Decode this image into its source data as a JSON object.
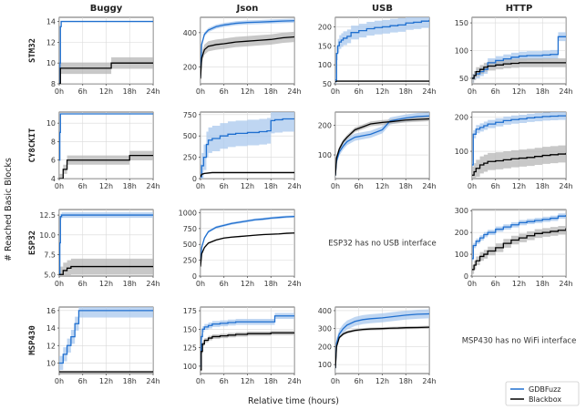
{
  "figure": {
    "xlabel": "Relative time (hours)",
    "ylabel": "# Reached Basic Blocks",
    "columns": [
      "Buggy",
      "Json",
      "USB",
      "HTTP"
    ],
    "rows": [
      "STM32",
      "CY8CKIT",
      "ESP32",
      "MSP430"
    ],
    "x_ticks": [
      "0h",
      "6h",
      "12h",
      "18h",
      "24h"
    ],
    "legend": [
      {
        "label": "GDBFuzz",
        "color": "#1f6fcf"
      },
      {
        "label": "Blackbox",
        "color": "#000000"
      }
    ],
    "notes": [
      {
        "row": 2,
        "col": 2,
        "text": "ESP32 has no USB interface"
      },
      {
        "row": 3,
        "col": 3,
        "text": "MSP430 has no WiFi interface"
      }
    ]
  },
  "chart_data": [
    {
      "type": "line",
      "row": 0,
      "col": 0,
      "ylim": [
        8,
        14.4
      ],
      "yticks": [
        8,
        10,
        12,
        14
      ],
      "yfmt": 0,
      "series": [
        {
          "name": "GDBFuzz",
          "color": "#1f6fcf",
          "band": 0,
          "step": true,
          "x": [
            0,
            0.2,
            0.3,
            0.5,
            24
          ],
          "y": [
            8,
            10,
            13.5,
            14,
            14
          ]
        },
        {
          "name": "Blackbox",
          "color": "#000000",
          "band": 0.55,
          "step": true,
          "x": [
            0,
            0.3,
            13.3,
            24
          ],
          "y": [
            8,
            9.5,
            10,
            10
          ]
        }
      ]
    },
    {
      "type": "line",
      "row": 0,
      "col": 1,
      "ylim": [
        100,
        490
      ],
      "yticks": [
        200,
        400
      ],
      "yfmt": 0,
      "series": [
        {
          "name": "GDBFuzz",
          "color": "#1f6fcf",
          "band": 12,
          "step": false,
          "x": [
            0,
            0.3,
            1,
            2,
            4,
            6,
            9,
            12,
            15,
            18,
            21,
            24
          ],
          "y": [
            140,
            330,
            390,
            415,
            435,
            445,
            455,
            460,
            462,
            465,
            468,
            470
          ]
        },
        {
          "name": "Blackbox",
          "color": "#000000",
          "band": 30,
          "step": false,
          "x": [
            0,
            0.3,
            1,
            2,
            4,
            6,
            9,
            12,
            15,
            18,
            21,
            24
          ],
          "y": [
            130,
            250,
            300,
            320,
            330,
            335,
            345,
            350,
            355,
            360,
            370,
            375
          ]
        }
      ]
    },
    {
      "type": "line",
      "row": 0,
      "col": 2,
      "ylim": [
        50,
        225
      ],
      "yticks": [
        50,
        100,
        150,
        200
      ],
      "yfmt": 0,
      "series": [
        {
          "name": "GDBFuzz",
          "color": "#1f6fcf",
          "band": 18,
          "step": true,
          "x": [
            0,
            0.3,
            0.6,
            1,
            1.5,
            2,
            3,
            4,
            6,
            8,
            10,
            12,
            14,
            16,
            18,
            20,
            22,
            24
          ],
          "y": [
            60,
            130,
            150,
            160,
            165,
            170,
            175,
            185,
            190,
            195,
            198,
            200,
            203,
            205,
            210,
            212,
            215,
            218
          ]
        },
        {
          "name": "Blackbox",
          "color": "#000000",
          "band": 0,
          "step": false,
          "x": [
            0,
            0.3,
            24
          ],
          "y": [
            55,
            57,
            57
          ]
        }
      ]
    },
    {
      "type": "line",
      "row": 0,
      "col": 3,
      "ylim": [
        40,
        160
      ],
      "yticks": [
        50,
        100,
        150
      ],
      "yfmt": 0,
      "series": [
        {
          "name": "GDBFuzz",
          "color": "#1f6fcf",
          "band": 8,
          "step": true,
          "x": [
            0,
            0.5,
            1,
            2,
            3,
            4,
            6,
            8,
            10,
            12,
            14,
            16,
            18,
            20,
            21.5,
            22,
            24
          ],
          "y": [
            50,
            55,
            58,
            62,
            66,
            78,
            82,
            85,
            88,
            90,
            91,
            91,
            92,
            93,
            93,
            125,
            125
          ]
        },
        {
          "name": "Blackbox",
          "color": "#000000",
          "band": 8,
          "step": true,
          "x": [
            0,
            0.5,
            1,
            2,
            3,
            4,
            6,
            8,
            10,
            12,
            14,
            16,
            18,
            20,
            22,
            24
          ],
          "y": [
            50,
            55,
            62,
            66,
            70,
            72,
            74,
            76,
            77,
            78,
            78,
            78,
            78,
            78,
            78,
            78
          ]
        }
      ]
    },
    {
      "type": "line",
      "row": 1,
      "col": 0,
      "ylim": [
        4,
        11.2
      ],
      "yticks": [
        4,
        6,
        8,
        10
      ],
      "yfmt": 0,
      "series": [
        {
          "name": "GDBFuzz",
          "color": "#1f6fcf",
          "band": 0,
          "step": true,
          "x": [
            0,
            0.15,
            0.3,
            24
          ],
          "y": [
            6,
            9,
            11,
            11
          ]
        },
        {
          "name": "Blackbox",
          "color": "#000000",
          "band": 0.5,
          "step": true,
          "x": [
            0,
            1,
            2,
            3,
            18,
            24
          ],
          "y": [
            4,
            5,
            6,
            6,
            6.5,
            6.5
          ]
        }
      ]
    },
    {
      "type": "line",
      "row": 1,
      "col": 1,
      "ylim": [
        0,
        780
      ],
      "yticks": [
        0,
        250,
        500,
        750
      ],
      "yfmt": 0,
      "series": [
        {
          "name": "GDBFuzz",
          "color": "#1f6fcf",
          "band": 150,
          "step": true,
          "x": [
            0,
            0.3,
            0.8,
            1.5,
            2,
            3,
            5,
            7,
            9,
            12,
            15,
            17,
            18,
            19,
            21,
            24
          ],
          "y": [
            20,
            150,
            250,
            400,
            450,
            470,
            500,
            520,
            530,
            540,
            550,
            560,
            680,
            690,
            700,
            700
          ]
        },
        {
          "name": "Blackbox",
          "color": "#000000",
          "band": 8,
          "step": false,
          "x": [
            0,
            0.3,
            1,
            3,
            24
          ],
          "y": [
            20,
            50,
            60,
            70,
            70
          ]
        }
      ]
    },
    {
      "type": "line",
      "row": 1,
      "col": 2,
      "ylim": [
        20,
        245
      ],
      "yticks": [
        100,
        200
      ],
      "yfmt": 0,
      "series": [
        {
          "name": "GDBFuzz",
          "color": "#1f6fcf",
          "band": 12,
          "step": false,
          "x": [
            0,
            0.3,
            1,
            2,
            3,
            5,
            7,
            9,
            12,
            14,
            16,
            18,
            21,
            24
          ],
          "y": [
            30,
            80,
            110,
            130,
            145,
            160,
            165,
            170,
            185,
            215,
            220,
            225,
            230,
            232
          ]
        },
        {
          "name": "Blackbox",
          "color": "#000000",
          "band": 8,
          "step": false,
          "x": [
            0,
            0.3,
            1,
            2,
            3,
            5,
            7,
            9,
            12,
            14,
            16,
            18,
            21,
            24
          ],
          "y": [
            30,
            90,
            120,
            145,
            160,
            185,
            195,
            205,
            210,
            212,
            215,
            218,
            220,
            222
          ]
        }
      ]
    },
    {
      "type": "line",
      "row": 1,
      "col": 3,
      "ylim": [
        20,
        215
      ],
      "yticks": [
        100,
        200
      ],
      "yfmt": 0,
      "series": [
        {
          "name": "GDBFuzz",
          "color": "#1f6fcf",
          "band": 12,
          "step": true,
          "x": [
            0,
            0.3,
            1,
            2,
            3,
            4,
            6,
            8,
            10,
            12,
            14,
            16,
            18,
            20,
            22,
            24
          ],
          "y": [
            60,
            150,
            165,
            170,
            175,
            180,
            185,
            190,
            193,
            195,
            198,
            200,
            202,
            203,
            204,
            205
          ]
        },
        {
          "name": "Blackbox",
          "color": "#000000",
          "band": 25,
          "step": true,
          "x": [
            0,
            0.5,
            1,
            2,
            3,
            4,
            6,
            8,
            10,
            12,
            14,
            16,
            18,
            20,
            22,
            24
          ],
          "y": [
            30,
            40,
            50,
            60,
            65,
            70,
            72,
            75,
            78,
            80,
            82,
            85,
            88,
            90,
            92,
            95
          ]
        }
      ]
    },
    {
      "type": "line",
      "row": 2,
      "col": 0,
      "ylim": [
        4.8,
        13.2
      ],
      "yticks": [
        5,
        7.5,
        10,
        12.5
      ],
      "yfmt": 1,
      "series": [
        {
          "name": "GDBFuzz",
          "color": "#1f6fcf",
          "band": 0.35,
          "step": true,
          "x": [
            0,
            0.15,
            0.3,
            0.6,
            24
          ],
          "y": [
            5,
            9,
            12.3,
            12.5,
            12.5
          ]
        },
        {
          "name": "Blackbox",
          "color": "#000000",
          "band": 1,
          "step": true,
          "x": [
            0,
            1,
            2,
            3,
            24
          ],
          "y": [
            5,
            5.5,
            5.8,
            6,
            6
          ]
        }
      ]
    },
    {
      "type": "line",
      "row": 2,
      "col": 1,
      "ylim": [
        0,
        1050
      ],
      "yticks": [
        0,
        250,
        500,
        750,
        1000
      ],
      "yfmt": 0,
      "series": [
        {
          "name": "GDBFuzz",
          "color": "#1f6fcf",
          "band": 20,
          "step": false,
          "x": [
            0,
            0.3,
            1,
            2,
            4,
            6,
            8,
            10,
            12,
            14,
            16,
            18,
            20,
            22,
            24
          ],
          "y": [
            200,
            450,
            600,
            700,
            770,
            800,
            830,
            850,
            870,
            890,
            900,
            915,
            925,
            935,
            940
          ]
        },
        {
          "name": "Blackbox",
          "color": "#000000",
          "band": 10,
          "step": false,
          "x": [
            0,
            0.3,
            1,
            2,
            4,
            6,
            8,
            10,
            12,
            14,
            16,
            18,
            20,
            22,
            24
          ],
          "y": [
            150,
            350,
            450,
            520,
            570,
            600,
            615,
            625,
            635,
            645,
            655,
            660,
            665,
            675,
            680
          ]
        }
      ]
    },
    {
      "type": "line",
      "row": 2,
      "col": 3,
      "ylim": [
        0,
        305
      ],
      "yticks": [
        0,
        100,
        200,
        300
      ],
      "yfmt": 0,
      "series": [
        {
          "name": "GDBFuzz",
          "color": "#1f6fcf",
          "band": 12,
          "step": true,
          "x": [
            0,
            0.3,
            1,
            2,
            3,
            4,
            6,
            8,
            10,
            12,
            14,
            16,
            18,
            20,
            22,
            24
          ],
          "y": [
            80,
            140,
            160,
            175,
            190,
            200,
            215,
            225,
            235,
            245,
            250,
            255,
            260,
            265,
            275,
            280
          ]
        },
        {
          "name": "Blackbox",
          "color": "#000000",
          "band": 20,
          "step": true,
          "x": [
            0,
            0.5,
            1,
            2,
            3,
            4,
            6,
            8,
            10,
            12,
            14,
            16,
            18,
            20,
            22,
            24
          ],
          "y": [
            30,
            50,
            70,
            90,
            100,
            115,
            130,
            150,
            165,
            175,
            185,
            195,
            200,
            205,
            210,
            220
          ]
        }
      ]
    },
    {
      "type": "line",
      "row": 3,
      "col": 0,
      "ylim": [
        8.8,
        16.4
      ],
      "yticks": [
        10,
        12,
        14,
        16
      ],
      "yfmt": 0,
      "series": [
        {
          "name": "GDBFuzz",
          "color": "#1f6fcf",
          "band": 0.8,
          "step": true,
          "x": [
            0,
            1,
            2,
            3,
            4,
            5,
            24
          ],
          "y": [
            10,
            11,
            12,
            13,
            14.5,
            16,
            16
          ]
        },
        {
          "name": "Blackbox",
          "color": "#000000",
          "band": 0,
          "step": false,
          "x": [
            0,
            24
          ],
          "y": [
            9,
            9
          ]
        }
      ]
    },
    {
      "type": "line",
      "row": 3,
      "col": 1,
      "ylim": [
        90,
        180
      ],
      "yticks": [
        100,
        125,
        150,
        175
      ],
      "yfmt": 0,
      "series": [
        {
          "name": "GDBFuzz",
          "color": "#1f6fcf",
          "band": 4,
          "step": true,
          "x": [
            0,
            0.2,
            0.5,
            1,
            2,
            3,
            5,
            7,
            9,
            12,
            15,
            18,
            19,
            24
          ],
          "y": [
            100,
            140,
            150,
            153,
            155,
            157,
            158,
            159,
            160,
            160,
            160,
            160,
            168,
            168
          ]
        },
        {
          "name": "Blackbox",
          "color": "#000000",
          "band": 3,
          "step": true,
          "x": [
            0,
            0.2,
            0.5,
            1,
            2,
            3,
            5,
            7,
            9,
            12,
            15,
            18,
            21,
            24
          ],
          "y": [
            95,
            120,
            130,
            135,
            138,
            140,
            141,
            142,
            143,
            144,
            144,
            145,
            145,
            145
          ]
        }
      ]
    },
    {
      "type": "line",
      "row": 3,
      "col": 2,
      "ylim": [
        50,
        420
      ],
      "yticks": [
        100,
        200,
        300,
        400
      ],
      "yfmt": 0,
      "series": [
        {
          "name": "GDBFuzz",
          "color": "#1f6fcf",
          "band": 25,
          "step": false,
          "x": [
            0,
            0.3,
            1,
            2,
            3,
            5,
            7,
            9,
            12,
            14,
            16,
            18,
            21,
            24
          ],
          "y": [
            80,
            220,
            270,
            300,
            320,
            340,
            350,
            355,
            360,
            365,
            370,
            375,
            380,
            382
          ]
        },
        {
          "name": "Blackbox",
          "color": "#000000",
          "band": 8,
          "step": false,
          "x": [
            0,
            0.3,
            1,
            2,
            3,
            5,
            7,
            9,
            12,
            14,
            16,
            18,
            21,
            24
          ],
          "y": [
            80,
            200,
            250,
            270,
            280,
            290,
            295,
            298,
            300,
            302,
            303,
            305,
            306,
            308
          ]
        }
      ]
    }
  ]
}
